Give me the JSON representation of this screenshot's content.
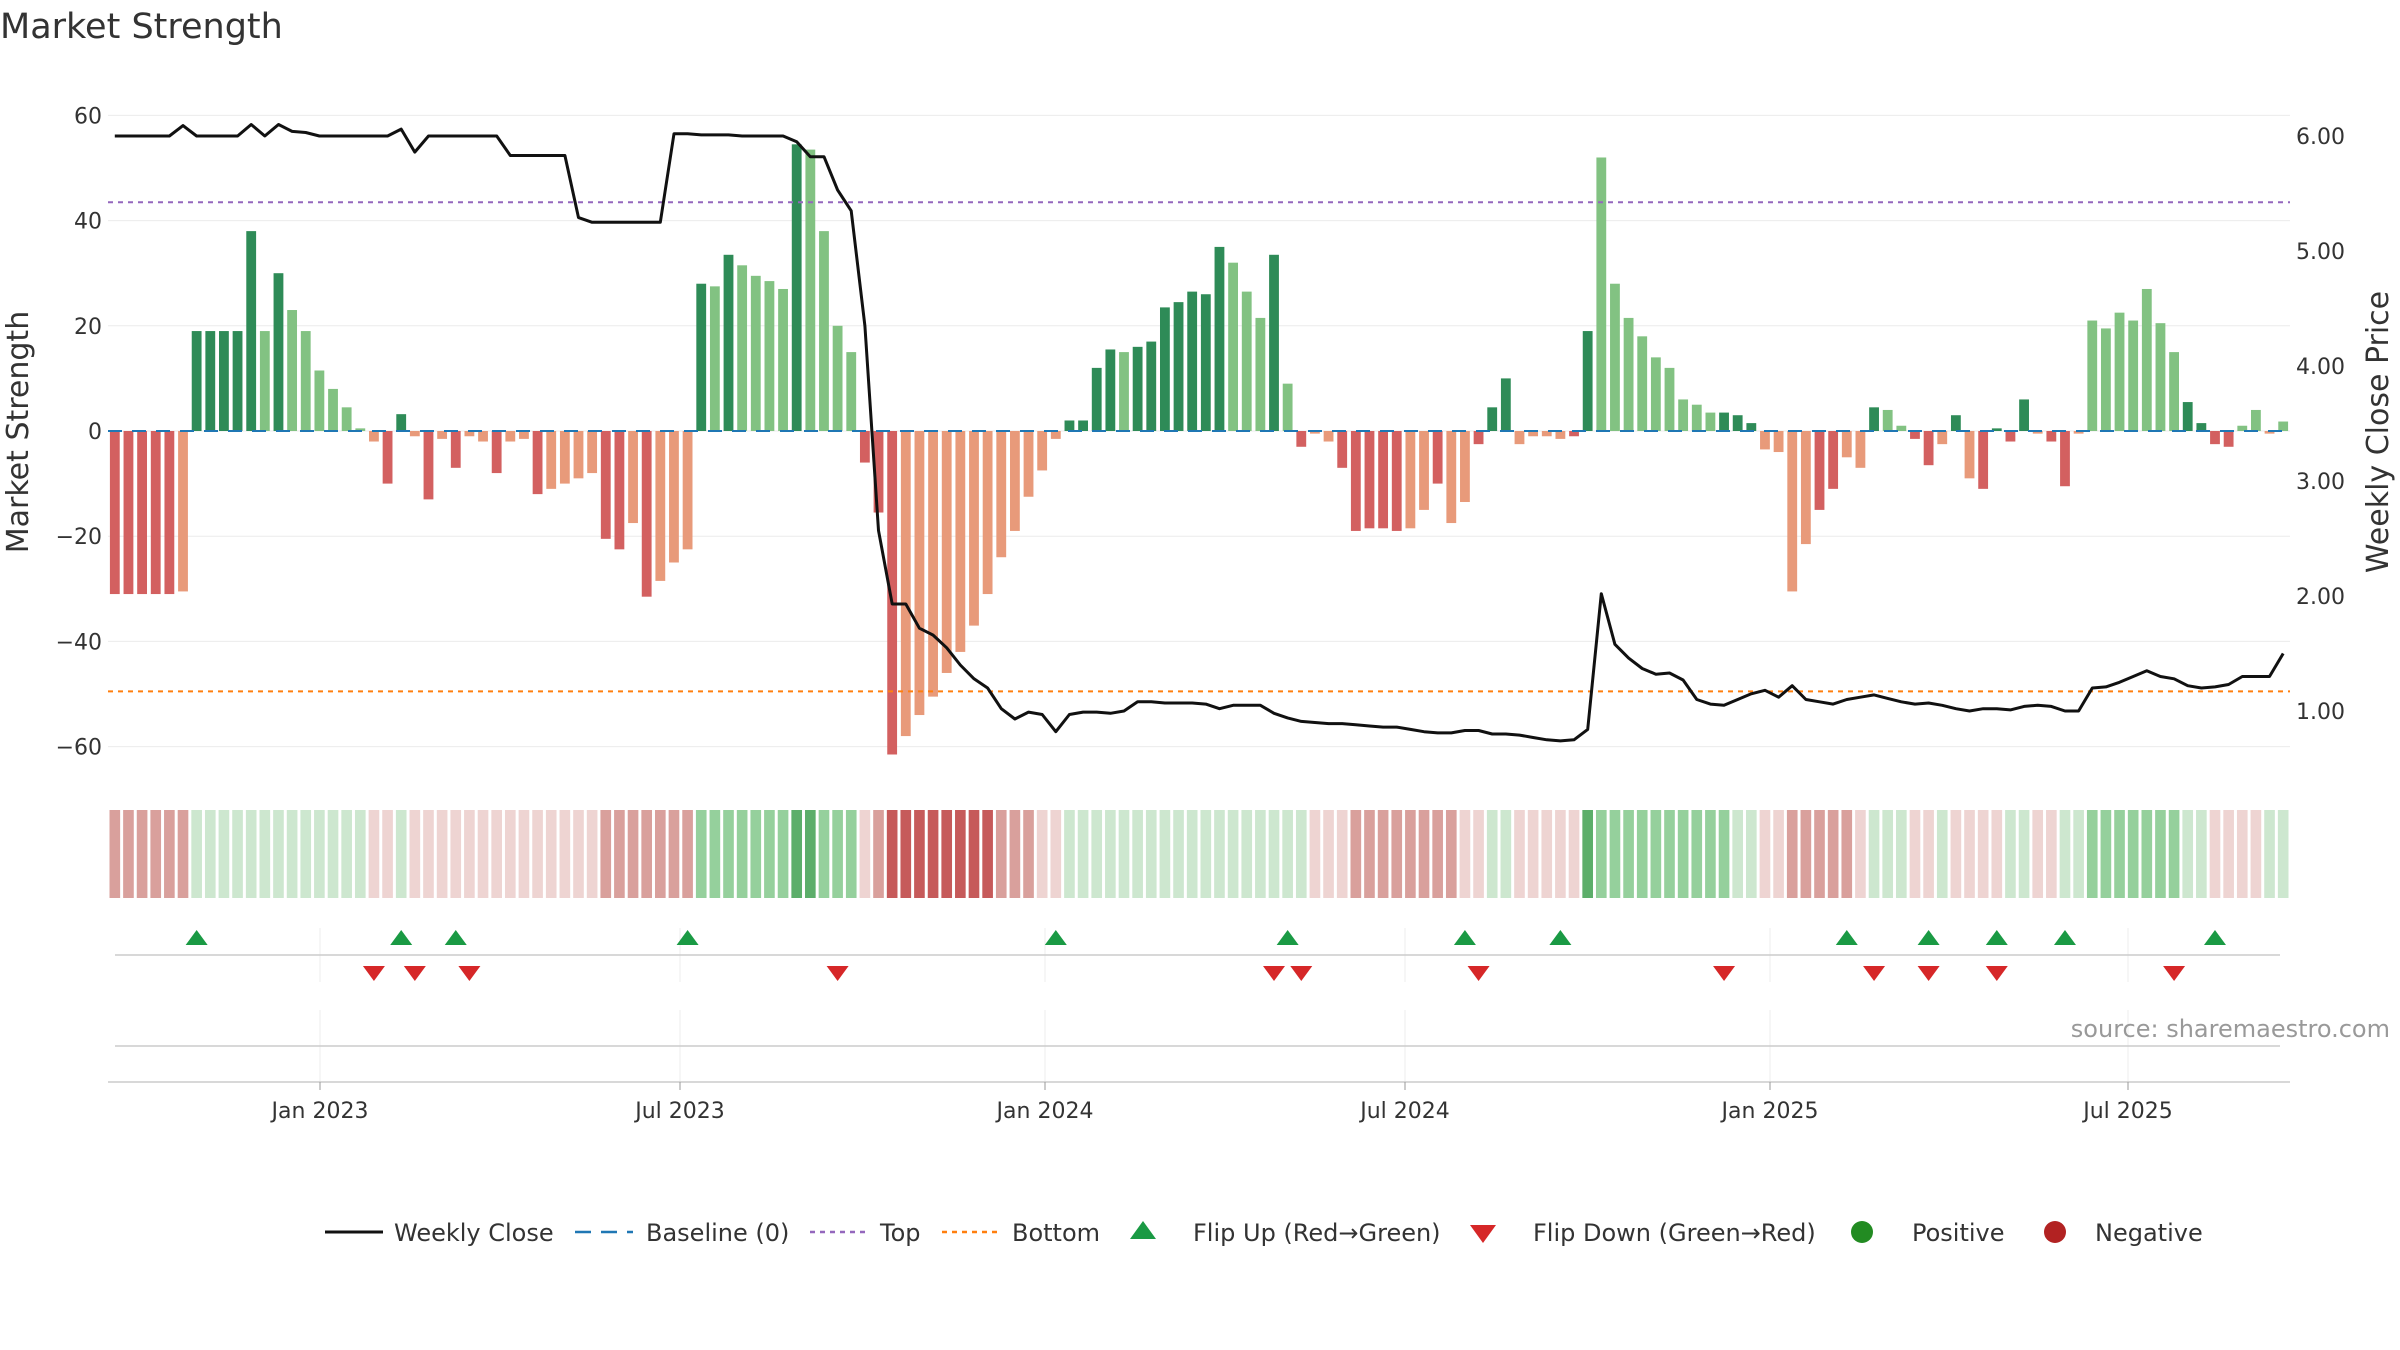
{
  "chart_data": {
    "type": "bar",
    "title": "Market Strength",
    "ylabel": "Market Strength",
    "y2label": "Weekly Close Price",
    "ylim": [
      -66,
      66
    ],
    "y2lim": [
      0.45,
      6.3
    ],
    "x_tick_labels": [
      "Jan 2023",
      "Jul 2023",
      "Jan 2024",
      "Jul 2024",
      "Jan 2025",
      "Jul 2025"
    ],
    "y_ticks": [
      "60",
      "40",
      "20",
      "0",
      "−20",
      "−40",
      "−60"
    ],
    "y2_ticks": [
      "6.00",
      "5.00",
      "4.00",
      "3.00",
      "2.00",
      "1.00"
    ],
    "top_level": 43.5,
    "bottom_level": -49.5,
    "source": "source: sharemaestro.com",
    "legend": [
      "Weekly Close",
      "Baseline (0)",
      "Top",
      "Bottom",
      "Flip Up (Red→Green)",
      "Flip Down (Green→Red)",
      "Positive",
      "Negative"
    ],
    "colors": {
      "pos_dark": "#2e8b57",
      "pos_light": "#82c282",
      "neg_dark": "#d36060",
      "neg_light": "#e89a7a",
      "line": "#111111",
      "baseline": "#1f77b4",
      "top": "#9467bd",
      "bottom": "#ff7f0e",
      "flip_up": "#1a9a44",
      "flip_down": "#d62728",
      "positive_dot": "#228b22",
      "negative_dot": "#b22222"
    },
    "strength": [
      -31,
      -31,
      -31,
      -31,
      -31,
      -30.5,
      19,
      19,
      19,
      19,
      38,
      19,
      30,
      23,
      19,
      11.5,
      8,
      4.5,
      0.5,
      -2,
      -10,
      3.2,
      -1,
      -13,
      -1.5,
      -7,
      -1,
      -2,
      -8,
      -2,
      -1.5,
      -12,
      -11,
      -10,
      -9,
      -8,
      -20.5,
      -22.5,
      -17.5,
      -31.5,
      -28.5,
      -25,
      -22.5,
      28,
      27.5,
      33.5,
      31.5,
      29.5,
      28.5,
      27,
      54.5,
      53.5,
      38,
      20,
      15,
      -6,
      -15.5,
      -61.5,
      -58,
      -54,
      -50.5,
      -46,
      -42,
      -37,
      -31,
      -24,
      -19,
      -12.5,
      -7.5,
      -1.5,
      2,
      2,
      12,
      15.5,
      15,
      16,
      17,
      23.5,
      24.5,
      26.5,
      26,
      35,
      32,
      26.5,
      21.5,
      33.5,
      9,
      -3,
      -0.5,
      -2,
      -7,
      -19,
      -18.5,
      -18.5,
      -19,
      -18.5,
      -15,
      -10,
      -17.5,
      -13.5,
      -2.5,
      4.5,
      10,
      -2.5,
      -1,
      -1,
      -1.5,
      -1,
      19,
      52,
      28,
      21.5,
      18,
      14,
      12,
      6,
      5,
      3.5,
      3.5,
      3,
      1.5,
      -3.5,
      -4,
      -30.5,
      -21.5,
      -15,
      -11,
      -5,
      -7,
      4.5,
      4,
      1,
      -1.5,
      -6.5,
      -2.5,
      3,
      -9,
      -11,
      0.5,
      -2,
      6,
      -0.5,
      -2,
      -10.5,
      -0.5,
      21,
      19.5,
      22.5,
      21,
      27,
      20.5,
      15,
      5.5,
      1.5,
      -2.5,
      -3,
      1,
      4,
      -0.5,
      1.8
    ],
    "strength_shade": [
      "d",
      "d",
      "d",
      "d",
      "d",
      "l",
      "d",
      "d",
      "d",
      "d",
      "d",
      "l",
      "d",
      "l",
      "l",
      "l",
      "l",
      "l",
      "l",
      "l",
      "d",
      "d",
      "l",
      "d",
      "l",
      "d",
      "l",
      "l",
      "d",
      "l",
      "l",
      "d",
      "l",
      "l",
      "l",
      "l",
      "d",
      "d",
      "l",
      "d",
      "l",
      "l",
      "l",
      "d",
      "l",
      "d",
      "l",
      "l",
      "l",
      "l",
      "d",
      "l",
      "l",
      "l",
      "l",
      "d",
      "d",
      "d",
      "l",
      "l",
      "l",
      "l",
      "l",
      "l",
      "l",
      "l",
      "l",
      "l",
      "l",
      "l",
      "d",
      "d",
      "d",
      "d",
      "l",
      "d",
      "d",
      "d",
      "d",
      "d",
      "d",
      "d",
      "l",
      "l",
      "l",
      "d",
      "l",
      "d",
      "l",
      "l",
      "d",
      "d",
      "d",
      "d",
      "d",
      "l",
      "l",
      "d",
      "l",
      "l",
      "d",
      "d",
      "d",
      "l",
      "l",
      "l",
      "l",
      "d",
      "d",
      "l",
      "l",
      "l",
      "l",
      "l",
      "l",
      "l",
      "l",
      "l",
      "d",
      "d",
      "d",
      "l",
      "l",
      "l",
      "l",
      "d",
      "d",
      "l",
      "l",
      "d",
      "l",
      "l",
      "d",
      "d",
      "l",
      "d",
      "l",
      "d",
      "d",
      "d",
      "d",
      "l",
      "d",
      "d",
      "l",
      "l",
      "l",
      "l",
      "l",
      "l",
      "l",
      "l",
      "d",
      "d",
      "d",
      "d"
    ],
    "weekly_close": [
      6.0,
      6.0,
      6.0,
      6.0,
      6.0,
      6.09,
      6.0,
      6.0,
      6.0,
      6.0,
      6.1,
      6.0,
      6.1,
      6.04,
      6.03,
      6.0,
      6.0,
      6.0,
      6.0,
      6.0,
      6.0,
      6.06,
      5.86,
      6.0,
      6.0,
      6.0,
      6.0,
      6.0,
      6.0,
      5.83,
      5.83,
      5.83,
      5.83,
      5.83,
      5.29,
      5.25,
      5.25,
      5.25,
      5.25,
      5.25,
      5.25,
      6.02,
      6.02,
      6.01,
      6.01,
      6.01,
      6.0,
      6.0,
      6.0,
      6.0,
      5.95,
      5.82,
      5.82,
      5.53,
      5.35,
      4.35,
      2.57,
      1.93,
      1.93,
      1.72,
      1.66,
      1.55,
      1.4,
      1.28,
      1.2,
      1.02,
      0.93,
      0.99,
      0.97,
      0.82,
      0.97,
      0.99,
      0.99,
      0.98,
      1.0,
      1.08,
      1.08,
      1.07,
      1.07,
      1.07,
      1.06,
      1.02,
      1.05,
      1.05,
      1.05,
      0.98,
      0.94,
      0.91,
      0.9,
      0.89,
      0.89,
      0.88,
      0.87,
      0.86,
      0.86,
      0.84,
      0.82,
      0.81,
      0.81,
      0.83,
      0.83,
      0.8,
      0.8,
      0.79,
      0.77,
      0.75,
      0.74,
      0.75,
      0.84,
      2.02,
      1.58,
      1.46,
      1.37,
      1.32,
      1.33,
      1.27,
      1.1,
      1.06,
      1.05,
      1.1,
      1.15,
      1.18,
      1.12,
      1.22,
      1.1,
      1.08,
      1.06,
      1.1,
      1.12,
      1.14,
      1.11,
      1.08,
      1.06,
      1.07,
      1.05,
      1.02,
      1.0,
      1.02,
      1.02,
      1.01,
      1.04,
      1.05,
      1.04,
      1.0,
      1.0,
      1.2,
      1.21,
      1.25,
      1.3,
      1.35,
      1.3,
      1.28,
      1.22,
      1.2,
      1.21,
      1.23,
      1.3,
      1.3,
      1.3,
      1.5
    ],
    "band_levels": [
      -2,
      -2,
      -2,
      -2,
      -2,
      -2,
      1,
      1,
      1,
      1,
      1,
      1,
      1,
      1,
      1,
      1,
      1,
      1,
      1,
      -1,
      -1,
      1,
      -1,
      -1,
      -1,
      -1,
      -1,
      -1,
      -1,
      -1,
      -1,
      -1,
      -1,
      -1,
      -1,
      -1,
      -2,
      -2,
      -2,
      -2,
      -2,
      -2,
      -2,
      2,
      2,
      2,
      2,
      2,
      2,
      2,
      3,
      3,
      2,
      2,
      2,
      -1,
      -2,
      -3,
      -3,
      -3,
      -3,
      -3,
      -3,
      -3,
      -3,
      -2,
      -2,
      -2,
      -1,
      -1,
      1,
      1,
      1,
      1,
      1,
      1,
      1,
      1,
      1,
      1,
      1,
      1,
      1,
      1,
      1,
      1,
      1,
      1,
      -1,
      -1,
      -1,
      -2,
      -2,
      -2,
      -2,
      -2,
      -2,
      -2,
      -2,
      -1,
      -1,
      1,
      1,
      -1,
      -1,
      -1,
      -1,
      -1,
      3,
      2,
      2,
      2,
      2,
      2,
      2,
      2,
      2,
      2,
      2,
      1,
      1,
      -1,
      -1,
      -2,
      -2,
      -2,
      -2,
      -2,
      -1,
      1,
      1,
      1,
      -1,
      -1,
      1,
      -1,
      -1,
      -1,
      -1,
      1,
      1,
      -1,
      -1,
      1,
      1,
      2,
      2,
      2,
      2,
      2,
      2,
      2,
      1,
      1,
      -1,
      -1,
      -1,
      -1,
      1,
      1
    ],
    "flip_up_indices": [
      6,
      21,
      25,
      42,
      69,
      86,
      99,
      106,
      127,
      133,
      138,
      143,
      154
    ],
    "flip_down_indices": [
      19,
      22,
      26,
      53,
      85,
      87,
      100,
      118,
      129,
      133,
      138,
      151
    ]
  }
}
